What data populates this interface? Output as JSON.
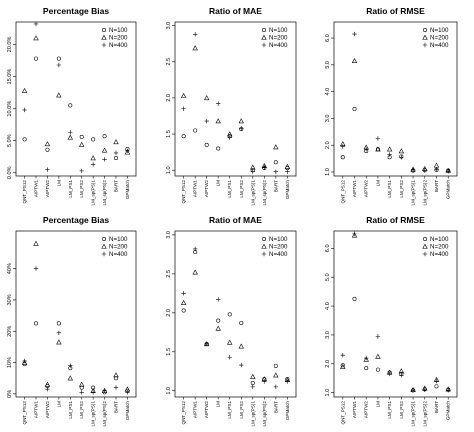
{
  "chart_data": [
    {
      "type": "scatter",
      "title": "Percentage Bias",
      "xlabel": "",
      "ylabel": "",
      "ylim": [
        -0.005,
        0.235
      ],
      "yticks": [
        0,
        0.05,
        0.1,
        0.15,
        0.2
      ],
      "ytick_labels": [
        "0.0%",
        "5.0%",
        "10.0%",
        "15.0%",
        "20.0%"
      ],
      "categories": [
        "QNT_PS12",
        "AIPTW1",
        "AIPTW2",
        "LM",
        "LM_PS1",
        "LM_PS2",
        "LM_sp(PS)1",
        "LM_sp(PS)2",
        "BART",
        "GPMatch"
      ],
      "legend": {
        "position": "top-right",
        "entries": [
          "N=100",
          "N=200",
          "N=400"
        ],
        "markers": [
          "circle",
          "triangle",
          "plus"
        ]
      },
      "series": [
        {
          "name": "N=100",
          "marker": "circle",
          "values": [
            0.052,
            0.178,
            0.036,
            0.178,
            0.105,
            0.056,
            0.052,
            0.057,
            0.023,
            0.037
          ]
        },
        {
          "name": "N=200",
          "marker": "triangle",
          "values": [
            0.128,
            0.21,
            0.045,
            0.121,
            0.055,
            0.044,
            0.023,
            0.035,
            0.048,
            0.032
          ]
        },
        {
          "name": "N=400",
          "marker": "plus",
          "values": [
            0.098,
            0.232,
            0.005,
            0.168,
            0.063,
            0.003,
            0.013,
            0.021,
            0.031,
            0.034
          ]
        }
      ]
    },
    {
      "type": "scatter",
      "title": "Ratio of MAE",
      "xlabel": "",
      "ylabel": "",
      "ylim": [
        0.92,
        3.05
      ],
      "yticks": [
        1.0,
        1.5,
        2.0,
        2.5,
        3.0
      ],
      "ytick_labels": [
        "1.0",
        "1.5",
        "2.0",
        "2.5",
        "3.0"
      ],
      "categories": [
        "QNT_PS12",
        "AIPTW1",
        "AIPTW2",
        "LM",
        "LM_PS1",
        "LM_PS2",
        "LM_sp(PS)1",
        "LM_sp(PS)2",
        "BART",
        "GPMatch"
      ],
      "legend": {
        "position": "top-right",
        "entries": [
          "N=100",
          "N=200",
          "N=400"
        ],
        "markers": [
          "circle",
          "triangle",
          "plus"
        ]
      },
      "series": [
        {
          "name": "N=100",
          "marker": "circle",
          "values": [
            1.47,
            1.55,
            1.35,
            1.3,
            1.47,
            1.57,
            1.0,
            1.03,
            1.11,
            1.03
          ]
        },
        {
          "name": "N=200",
          "marker": "triangle",
          "values": [
            2.03,
            2.69,
            2.0,
            1.68,
            1.5,
            1.68,
            1.04,
            1.06,
            1.32,
            1.05
          ]
        },
        {
          "name": "N=400",
          "marker": "plus",
          "values": [
            1.85,
            2.88,
            1.68,
            1.92,
            1.45,
            1.58,
            0.98,
            1.04,
            0.98,
            0.98
          ]
        }
      ]
    },
    {
      "type": "scatter",
      "title": "Ratio of RMSE",
      "xlabel": "",
      "ylabel": "",
      "ylim": [
        0.85,
        6.6
      ],
      "yticks": [
        1.0,
        2.0,
        3.0,
        4.0,
        5.0,
        6.0
      ],
      "ytick_labels": [
        "1.0",
        "2.0",
        "3.0",
        "4.0",
        "5.0",
        "6.0"
      ],
      "categories": [
        "QNT_PS12",
        "AIPTW1",
        "AIPTW2",
        "LM",
        "LM_PS1",
        "LM_PS2",
        "LM_sp(PS)1",
        "LM_sp(PS)2",
        "BART",
        "GPMatch"
      ],
      "legend": {
        "position": "top-right",
        "entries": [
          "N=100",
          "N=200",
          "N=400"
        ],
        "markers": [
          "circle",
          "triangle",
          "plus"
        ]
      },
      "series": [
        {
          "name": "N=100",
          "marker": "circle",
          "values": [
            1.55,
            3.35,
            1.78,
            1.85,
            1.55,
            1.58,
            1.05,
            1.07,
            1.08,
            1.05
          ]
        },
        {
          "name": "N=200",
          "marker": "triangle",
          "values": [
            2.05,
            5.15,
            1.92,
            1.85,
            1.85,
            1.78,
            1.1,
            1.12,
            1.25,
            1.05
          ]
        },
        {
          "name": "N=400",
          "marker": "plus",
          "values": [
            1.95,
            6.15,
            1.85,
            2.25,
            1.65,
            1.55,
            1.08,
            1.05,
            1.1,
            1.02
          ]
        }
      ]
    },
    {
      "type": "scatter",
      "title": "Percentage Bias",
      "xlabel": "",
      "ylabel": "",
      "ylim": [
        -0.01,
        0.52
      ],
      "yticks": [
        0,
        0.1,
        0.2,
        0.3,
        0.4
      ],
      "ytick_labels": [
        "0%",
        "10%",
        "20%",
        "30%",
        "40%"
      ],
      "categories": [
        "QNT_PS12",
        "AIPTW1",
        "AIPTW2",
        "LM",
        "LM_PS1",
        "LM_PS2",
        "LM_sp(PS)1",
        "LM_sp(PS)2",
        "BART",
        "GPMatch"
      ],
      "legend": {
        "position": "top-right",
        "entries": [
          "N=100",
          "N=200",
          "N=400"
        ],
        "markers": [
          "circle",
          "triangle",
          "plus"
        ]
      },
      "series": [
        {
          "name": "N=100",
          "marker": "circle",
          "values": [
            0.095,
            0.225,
            0.025,
            0.225,
            0.082,
            0.02,
            0.02,
            0.005,
            0.05,
            0.01
          ]
        },
        {
          "name": "N=200",
          "marker": "triangle",
          "values": [
            0.1,
            0.48,
            0.03,
            0.165,
            0.05,
            0.03,
            0.01,
            0.01,
            0.06,
            0.015
          ]
        },
        {
          "name": "N=400",
          "marker": "plus",
          "values": [
            0.105,
            0.4,
            0.015,
            0.195,
            0.09,
            0.005,
            0.005,
            0.01,
            0.02,
            0.005
          ]
        }
      ]
    },
    {
      "type": "scatter",
      "title": "Ratio of MAE",
      "xlabel": "",
      "ylabel": "",
      "ylim": [
        0.92,
        3.05
      ],
      "yticks": [
        1.0,
        1.5,
        2.0,
        2.5,
        3.0
      ],
      "ytick_labels": [
        "1.0",
        "1.5",
        "2.0",
        "2.5",
        "3.0"
      ],
      "categories": [
        "QNT_PS12",
        "AIPTW1",
        "AIPTW2",
        "LM",
        "LM_PS1",
        "LM_PS2",
        "LM_sp(PS)1",
        "LM_sp(PS)2",
        "BART",
        "GPMatch"
      ],
      "legend": {
        "position": "top-right",
        "entries": [
          "N=100",
          "N=200",
          "N=400"
        ],
        "markers": [
          "circle",
          "triangle",
          "plus"
        ]
      },
      "series": [
        {
          "name": "N=100",
          "marker": "circle",
          "values": [
            2.03,
            2.78,
            1.6,
            1.9,
            1.98,
            1.87,
            1.1,
            1.15,
            1.32,
            1.15
          ]
        },
        {
          "name": "N=200",
          "marker": "triangle",
          "values": [
            2.13,
            2.52,
            1.6,
            1.8,
            1.62,
            1.57,
            1.18,
            1.15,
            1.2,
            1.14
          ]
        },
        {
          "name": "N=400",
          "marker": "plus",
          "values": [
            2.25,
            2.82,
            1.6,
            2.17,
            1.43,
            1.33,
            1.05,
            1.12,
            1.05,
            1.12
          ]
        }
      ]
    },
    {
      "type": "scatter",
      "title": "Ratio of RMSE",
      "xlabel": "",
      "ylabel": "",
      "ylim": [
        0.85,
        6.6
      ],
      "yticks": [
        1.0,
        2.0,
        3.0,
        4.0,
        5.0,
        6.0
      ],
      "ytick_labels": [
        "1.0",
        "2.0",
        "3.0",
        "4.0",
        "5.0",
        "6.0"
      ],
      "categories": [
        "QNT_PS12",
        "AIPTW1",
        "AIPTW2",
        "LM",
        "LM_PS1",
        "LM_PS2",
        "LM_sp(PS)1",
        "LM_sp(PS)2",
        "BART",
        "GPMatch"
      ],
      "legend": {
        "position": "top-right",
        "entries": [
          "N=100",
          "N=200",
          "N=400"
        ],
        "markers": [
          "circle",
          "triangle",
          "plus"
        ]
      },
      "series": [
        {
          "name": "N=100",
          "marker": "circle",
          "values": [
            1.95,
            4.25,
            1.85,
            1.8,
            1.7,
            1.65,
            1.08,
            1.12,
            1.22,
            1.1
          ]
        },
        {
          "name": "N=200",
          "marker": "triangle",
          "values": [
            1.9,
            6.45,
            2.15,
            2.25,
            1.7,
            1.75,
            1.1,
            1.15,
            1.45,
            1.12
          ]
        },
        {
          "name": "N=400",
          "marker": "plus",
          "values": [
            2.3,
            6.5,
            2.2,
            2.95,
            1.65,
            1.6,
            1.08,
            1.1,
            1.4,
            1.08
          ]
        }
      ]
    }
  ]
}
